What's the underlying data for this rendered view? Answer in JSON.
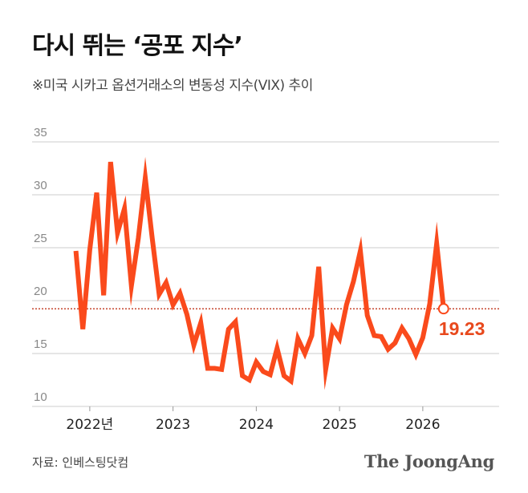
{
  "header": {
    "title": "다시 뛰는 ‘공포 지수’",
    "subtitle": "※미국 시카고 옵션거래소의 변동성 지수(VIX) 추이"
  },
  "footer": {
    "source": "자료: 인베스팅닷컴",
    "brand": "The JoongAng"
  },
  "colors": {
    "line": "#fa4a1c",
    "grid": "#cccccc",
    "reference_line": "#c0351b",
    "last_label": "#e8491d",
    "axis_text": "#888888",
    "year_text": "#222222"
  },
  "chart_data": {
    "type": "line",
    "title": "다시 뛰는 ‘공포 지수’",
    "subtitle": "※미국 시카고 옵션거래소의 변동성 지수(VIX) 추이",
    "xlabel": "",
    "ylabel": "",
    "ylim": [
      10,
      35
    ],
    "yticks": [
      10,
      15,
      20,
      25,
      30,
      35
    ],
    "x_tick_labels": [
      "2022년",
      "2023",
      "2024",
      "2025",
      "2026"
    ],
    "x_tick_positions": [
      "2022-01",
      "2023-01",
      "2024-01",
      "2025-01",
      "2026-01"
    ],
    "xlim": [
      "2021-07",
      "2026-12"
    ],
    "grid": true,
    "reference_value": 19.23,
    "last_value_label": "19.23",
    "series": [
      {
        "x": [
          "2021-11",
          "2021-12",
          "2022-01",
          "2022-02",
          "2022-03",
          "2022-04",
          "2022-05",
          "2022-06",
          "2022-07",
          "2022-08",
          "2022-09",
          "2022-10",
          "2022-11",
          "2022-12",
          "2023-01",
          "2023-02",
          "2023-03",
          "2023-04",
          "2023-05",
          "2023-06",
          "2023-07",
          "2023-08",
          "2023-09",
          "2023-10",
          "2023-11",
          "2023-12",
          "2024-01",
          "2024-02",
          "2024-03",
          "2024-04",
          "2024-05",
          "2024-06",
          "2024-07",
          "2024-08",
          "2024-09",
          "2024-10",
          "2024-11",
          "2024-12",
          "2025-01",
          "2025-02",
          "2025-03",
          "2025-04",
          "2025-05",
          "2025-06",
          "2025-07",
          "2025-08",
          "2025-09",
          "2025-10",
          "2025-11",
          "2025-12",
          "2026-01",
          "2026-02",
          "2026-03",
          "2026-04"
        ],
        "values": [
          24.7,
          17.3,
          24.8,
          30.2,
          20.5,
          33.1,
          26.4,
          28.7,
          21.4,
          25.9,
          31.6,
          25.9,
          20.6,
          21.7,
          19.6,
          20.7,
          18.7,
          15.8,
          17.9,
          13.6,
          13.6,
          13.5,
          17.3,
          18.0,
          12.9,
          12.5,
          14.2,
          13.3,
          13.0,
          15.5,
          12.9,
          12.4,
          16.4,
          15.0,
          16.7,
          23.2,
          13.5,
          17.4,
          16.4,
          19.6,
          21.8,
          24.7,
          18.6,
          16.7,
          16.6,
          15.4,
          16.0,
          17.4,
          16.4,
          14.9,
          16.5,
          19.7,
          25.4,
          19.23
        ]
      }
    ]
  }
}
